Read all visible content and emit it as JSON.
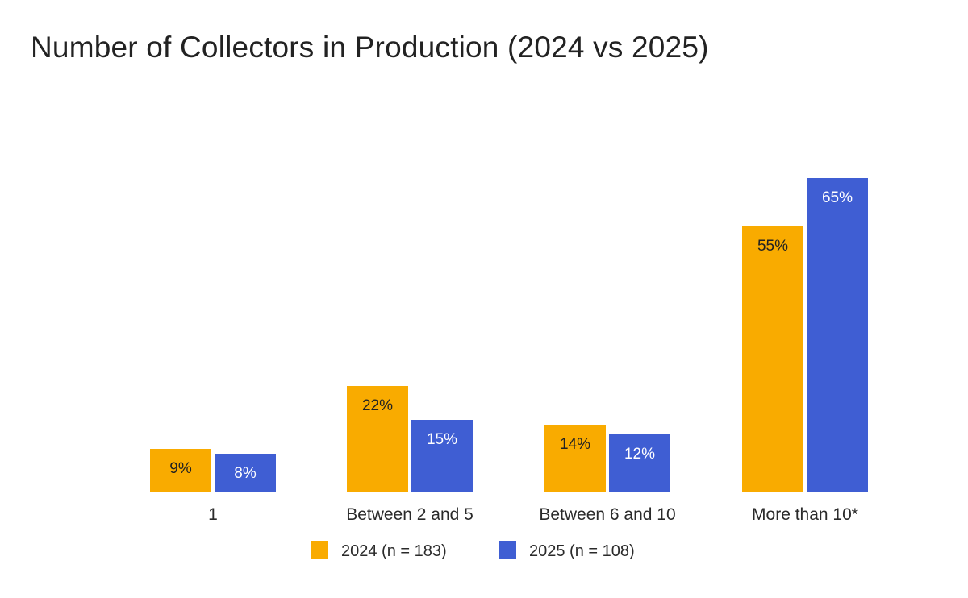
{
  "chart_data": {
    "type": "bar",
    "title": "Number of Collectors in Production (2024 vs 2025)",
    "categories": [
      "1",
      "Between 2 and 5",
      "Between 6 and 10",
      "More than 10*"
    ],
    "series": [
      {
        "name": "2024 (n = 183)",
        "color": "#F9AB00",
        "label_color": "#222222",
        "values": [
          9,
          22,
          14,
          55
        ],
        "labels": [
          "9%",
          "22%",
          "14%",
          "55%"
        ]
      },
      {
        "name": "2025 (n = 108)",
        "color": "#3F5ED3",
        "label_color": "#ffffff",
        "values": [
          8,
          15,
          12,
          65
        ],
        "labels": [
          "8%",
          "15%",
          "12%",
          "65%"
        ]
      }
    ],
    "xlabel": "",
    "ylabel": "",
    "ylim": [
      0,
      65
    ],
    "grid": false,
    "legend": "bottom"
  }
}
